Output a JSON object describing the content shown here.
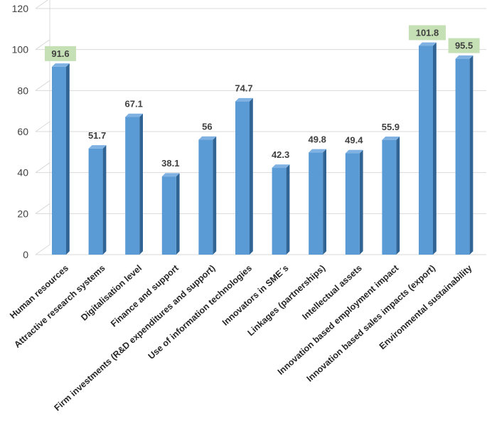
{
  "chart_data": {
    "type": "bar",
    "categories": [
      "Human resources",
      "Attractive research systems",
      "Digitalisation level",
      "Finance and support",
      "Firm investments  (R&D expenditures and support)",
      "Use of information technologies",
      "Innovators in  SME´s",
      "Linkages (partnerships)",
      "Intellectual assets",
      "Innovation based employment impact",
      "Innovation based sales impacts (export)",
      "Environmental sustainability"
    ],
    "values": [
      91.6,
      51.7,
      67.1,
      38.1,
      56,
      74.7,
      42.3,
      49.8,
      49.4,
      55.9,
      101.8,
      95.5
    ],
    "value_labels": [
      "91.6",
      "51.7",
      "67.1",
      "38.1",
      "56",
      "74.7",
      "42.3",
      "49.8",
      "49.4",
      "55.9",
      "101.8",
      "95.5"
    ],
    "highlighted": [
      true,
      false,
      false,
      false,
      false,
      false,
      false,
      false,
      false,
      false,
      true,
      true
    ],
    "ylim": [
      0,
      120
    ],
    "yticks": [
      0,
      20,
      40,
      60,
      80,
      100,
      120
    ],
    "grid": true,
    "legend": "none",
    "colors": {
      "bar_front": "#5b9bd5",
      "bar_side": "#2f6494",
      "bar_top": "#7fb2e3",
      "label_highlight_bg": "#c5e0b4",
      "grid": "#d9d9d9"
    }
  }
}
